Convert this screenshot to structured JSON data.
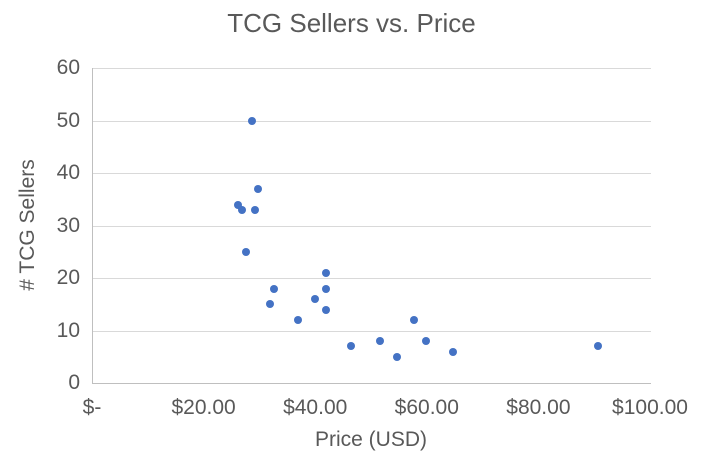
{
  "chart_data": {
    "type": "scatter",
    "title": "TCG Sellers vs. Price",
    "xlabel": "Price (USD)",
    "ylabel": "# TCG Sellers",
    "xlim": [
      0,
      100
    ],
    "ylim": [
      0,
      60
    ],
    "grid": "horizontal",
    "legend": false,
    "marker_color": "#4472C4",
    "gridline_color": "#D9D9D9",
    "axis_line_color": "#BFBFBF",
    "text_color": "#595959",
    "x_ticks": [
      {
        "value": 0,
        "label": "$-"
      },
      {
        "value": 20,
        "label": "$20.00"
      },
      {
        "value": 40,
        "label": "$40.00"
      },
      {
        "value": 60,
        "label": "$60.00"
      },
      {
        "value": 80,
        "label": "$80.00"
      },
      {
        "value": 100,
        "label": "$100.00"
      }
    ],
    "y_ticks": [
      {
        "value": 0,
        "label": "0"
      },
      {
        "value": 10,
        "label": "10"
      },
      {
        "value": 20,
        "label": "20"
      },
      {
        "value": 30,
        "label": "30"
      },
      {
        "value": 40,
        "label": "40"
      },
      {
        "value": 50,
        "label": "50"
      },
      {
        "value": 60,
        "label": "60"
      }
    ],
    "points": [
      {
        "x": 28.5,
        "y": 50
      },
      {
        "x": 29.5,
        "y": 37
      },
      {
        "x": 26.0,
        "y": 34
      },
      {
        "x": 26.75,
        "y": 33
      },
      {
        "x": 29.0,
        "y": 33
      },
      {
        "x": 27.5,
        "y": 25
      },
      {
        "x": 41.75,
        "y": 21
      },
      {
        "x": 32.5,
        "y": 18
      },
      {
        "x": 41.75,
        "y": 18
      },
      {
        "x": 39.75,
        "y": 16
      },
      {
        "x": 31.75,
        "y": 15
      },
      {
        "x": 41.75,
        "y": 14
      },
      {
        "x": 36.75,
        "y": 12
      },
      {
        "x": 57.5,
        "y": 12
      },
      {
        "x": 51.5,
        "y": 8
      },
      {
        "x": 59.75,
        "y": 8
      },
      {
        "x": 46.25,
        "y": 7
      },
      {
        "x": 90.5,
        "y": 7
      },
      {
        "x": 64.5,
        "y": 6
      },
      {
        "x": 54.5,
        "y": 5
      }
    ]
  }
}
